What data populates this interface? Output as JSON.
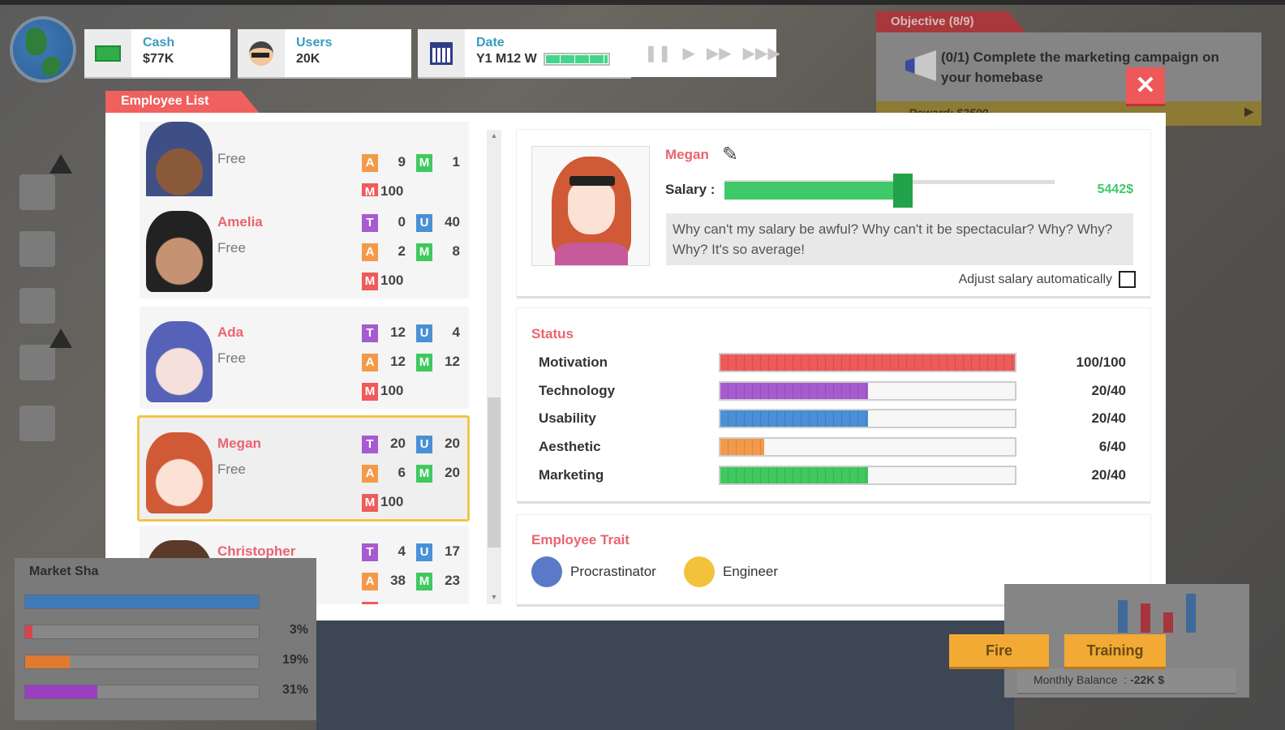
{
  "hud": {
    "cash": {
      "label": "Cash",
      "value": "$77K"
    },
    "users": {
      "label": "Users",
      "value": "20K"
    },
    "date": {
      "label": "Date",
      "value": "Y1 M12 W",
      "week_progress_fraction": 0.95
    },
    "controls": [
      "pause",
      "play",
      "fast-forward",
      "fastest"
    ]
  },
  "objective": {
    "tab": "Objective (8/9)",
    "text": "(0/1) Complete the marketing campaign on your homebase",
    "reward": "Reward: $2500"
  },
  "dialog": {
    "tab": "Employee List",
    "close_icon": "close-icon"
  },
  "employees": [
    {
      "name": "",
      "status": "Free",
      "stats": [
        {
          "k": "A",
          "v": "9"
        },
        {
          "k": "M",
          "v": "1"
        }
      ],
      "motivation": "100",
      "avatar_color": "#8a5a3a",
      "hair": "#3e4f86"
    },
    {
      "name": "Amelia",
      "status": "Free",
      "stats": [
        {
          "k": "T",
          "v": "0"
        },
        {
          "k": "U",
          "v": "40"
        },
        {
          "k": "A",
          "v": "2"
        },
        {
          "k": "M",
          "v": "8"
        }
      ],
      "motivation": "100",
      "avatar_color": "#c69372",
      "hair": "#222"
    },
    {
      "name": "Ada",
      "status": "Free",
      "stats": [
        {
          "k": "T",
          "v": "12"
        },
        {
          "k": "U",
          "v": "4"
        },
        {
          "k": "A",
          "v": "12"
        },
        {
          "k": "M",
          "v": "12"
        }
      ],
      "motivation": "100",
      "avatar_color": "#f5e0dc",
      "hair": "#5662b8"
    },
    {
      "name": "Megan",
      "status": "Free",
      "stats": [
        {
          "k": "T",
          "v": "20"
        },
        {
          "k": "U",
          "v": "20"
        },
        {
          "k": "A",
          "v": "6"
        },
        {
          "k": "M",
          "v": "20"
        }
      ],
      "motivation": "100",
      "avatar_color": "#fbe2d4",
      "hair": "#cf5a35",
      "selected": true
    },
    {
      "name": "Christopher",
      "status": "Free",
      "stats": [
        {
          "k": "T",
          "v": "4"
        },
        {
          "k": "U",
          "v": "17"
        },
        {
          "k": "A",
          "v": "38"
        },
        {
          "k": "M",
          "v": "23"
        }
      ],
      "motivation": "",
      "avatar_color": "#f1c9a8",
      "hair": "#5a3a28"
    }
  ],
  "badge_colors": {
    "T": "#a75bd0",
    "U": "#4a90d6",
    "A": "#f29a4a",
    "M": "#3fc95e",
    "Motivation": "#ef5a5a"
  },
  "detail": {
    "name": "Megan",
    "salary_label": "Salary :",
    "salary_value": "5442$",
    "salary_slider_percent": 54,
    "quote": "Why can't my salary be awful? Why can't it be spectacular? Why? Why? Why? It's so average!",
    "auto_salary_label": "Adjust salary automatically",
    "auto_salary_checked": false,
    "status_title": "Status",
    "status": [
      {
        "label": "Motivation",
        "value": 100,
        "max": 100,
        "text": "100/100",
        "color": "#ef5a5a"
      },
      {
        "label": "Technology",
        "value": 20,
        "max": 40,
        "text": "20/40",
        "color": "#a75bd0"
      },
      {
        "label": "Usability",
        "value": 20,
        "max": 40,
        "text": "20/40",
        "color": "#4a90d6"
      },
      {
        "label": "Aesthetic",
        "value": 6,
        "max": 40,
        "text": "6/40",
        "color": "#f29a4a"
      },
      {
        "label": "Marketing",
        "value": 20,
        "max": 40,
        "text": "20/40",
        "color": "#3fc95e"
      }
    ],
    "trait_title": "Employee Trait",
    "traits": [
      "Procrastinator",
      "Engineer"
    ]
  },
  "buttons": {
    "fire": "Fire",
    "training": "Training"
  },
  "market_share": {
    "title": "Market Sha",
    "rows": [
      {
        "pct": "",
        "value": 100,
        "color": "#3f7ab8"
      },
      {
        "pct": "3%",
        "value": 3,
        "color": "#d8434f"
      },
      {
        "pct": "19%",
        "value": 19,
        "color": "#e07a32"
      },
      {
        "pct": "31%",
        "value": 31,
        "color": "#9b3fc0"
      }
    ]
  },
  "balance": {
    "label": "Monthly Balance",
    "value": "-22K $"
  }
}
